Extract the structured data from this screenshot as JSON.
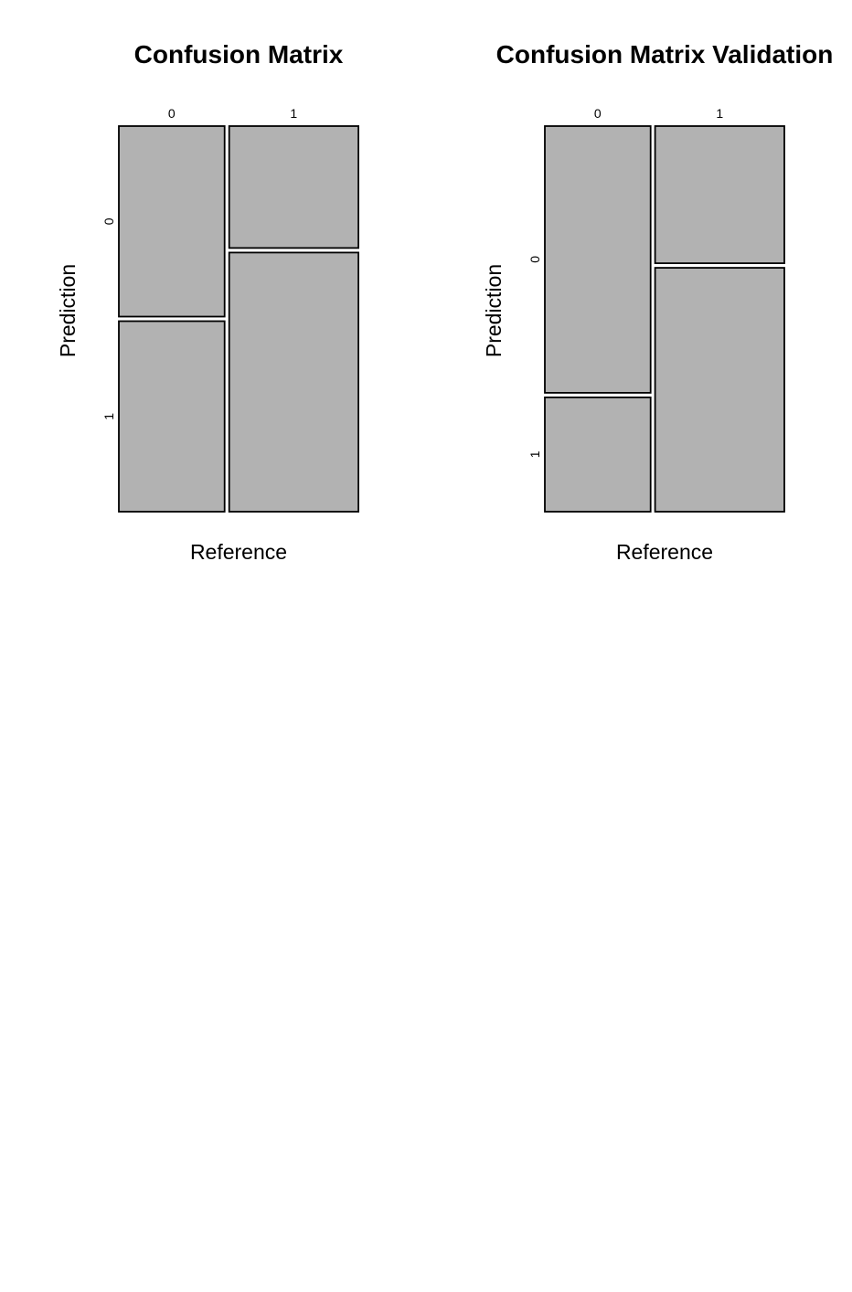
{
  "chart_data": [
    {
      "type": "mosaic",
      "title": "Confusion Matrix",
      "xlabel": "Reference",
      "ylabel": "Prediction",
      "x_categories": [
        "0",
        "1"
      ],
      "y_categories": [
        "0",
        "1"
      ],
      "reference_proportions": [
        0.45,
        0.55
      ],
      "prediction_proportions_within_reference": {
        "0": [
          0.5,
          0.5
        ],
        "1": [
          0.32,
          0.68
        ]
      },
      "fill_color": "#b2b2b2"
    },
    {
      "type": "mosaic",
      "title": "Confusion Matrix Validation",
      "xlabel": "Reference",
      "ylabel": "Prediction",
      "x_categories": [
        "0",
        "1"
      ],
      "y_categories": [
        "0",
        "1"
      ],
      "reference_proportions": [
        0.45,
        0.55
      ],
      "prediction_proportions_within_reference": {
        "0": [
          0.7,
          0.3
        ],
        "1": [
          0.36,
          0.64
        ]
      },
      "fill_color": "#b2b2b2"
    }
  ]
}
